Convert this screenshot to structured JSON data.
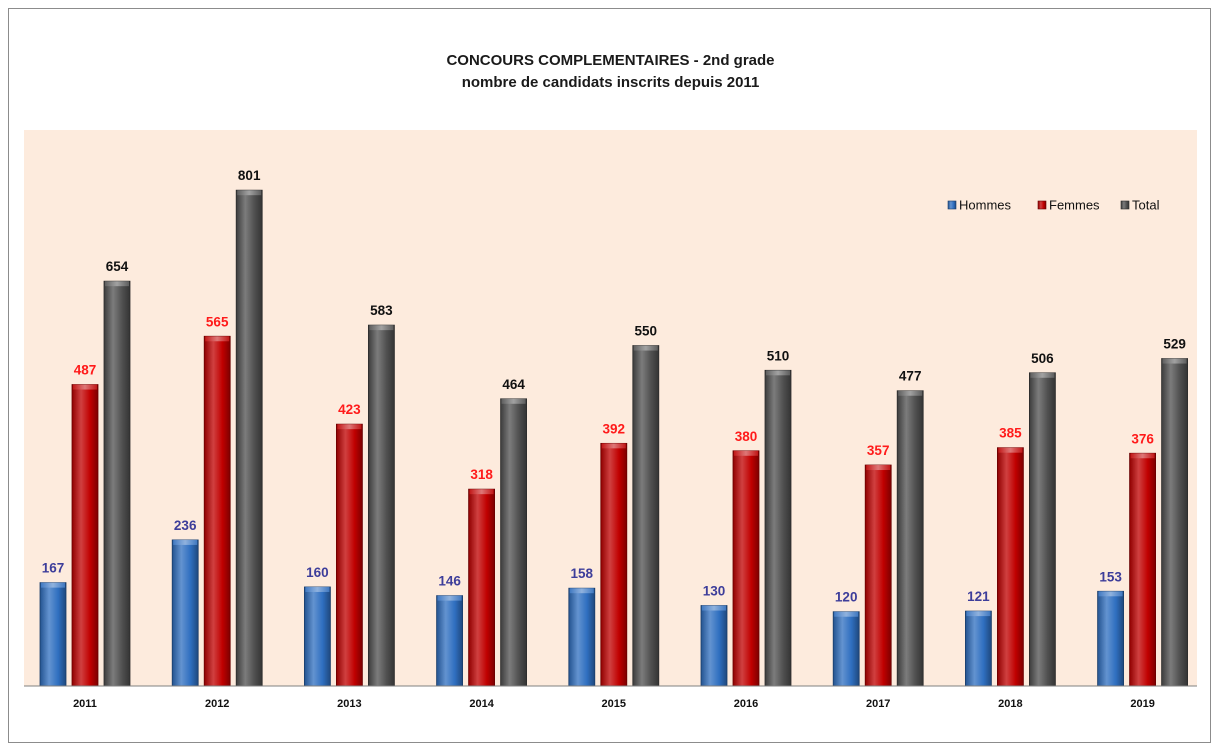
{
  "chart_data": {
    "type": "bar",
    "title": "CONCOURS COMPLEMENTAIRES - 2nd grade",
    "subtitle": "nombre de candidats inscrits depuis 2011",
    "xlabel": "",
    "ylabel": "",
    "ylim": [
      0,
      870
    ],
    "grid": false,
    "legend_position": "top-right",
    "categories": [
      "2011",
      "2012",
      "2013",
      "2014",
      "2015",
      "2016",
      "2017",
      "2018",
      "2019"
    ],
    "series": [
      {
        "name": "Hommes",
        "values": [
          167,
          236,
          160,
          146,
          158,
          130,
          120,
          121,
          153
        ],
        "color": "#2f6fc0",
        "label_color": "#3d3d9a"
      },
      {
        "name": "Femmes",
        "values": [
          487,
          565,
          423,
          318,
          392,
          380,
          357,
          385,
          376
        ],
        "color": "#c00000",
        "label_color": "#ff1a1a"
      },
      {
        "name": "Total",
        "values": [
          654,
          801,
          583,
          464,
          550,
          510,
          477,
          506,
          529
        ],
        "color": "#505050",
        "label_color": "#111111"
      }
    ]
  },
  "colors": {
    "plot_background": "#fdebdd",
    "axis": "#808080"
  }
}
